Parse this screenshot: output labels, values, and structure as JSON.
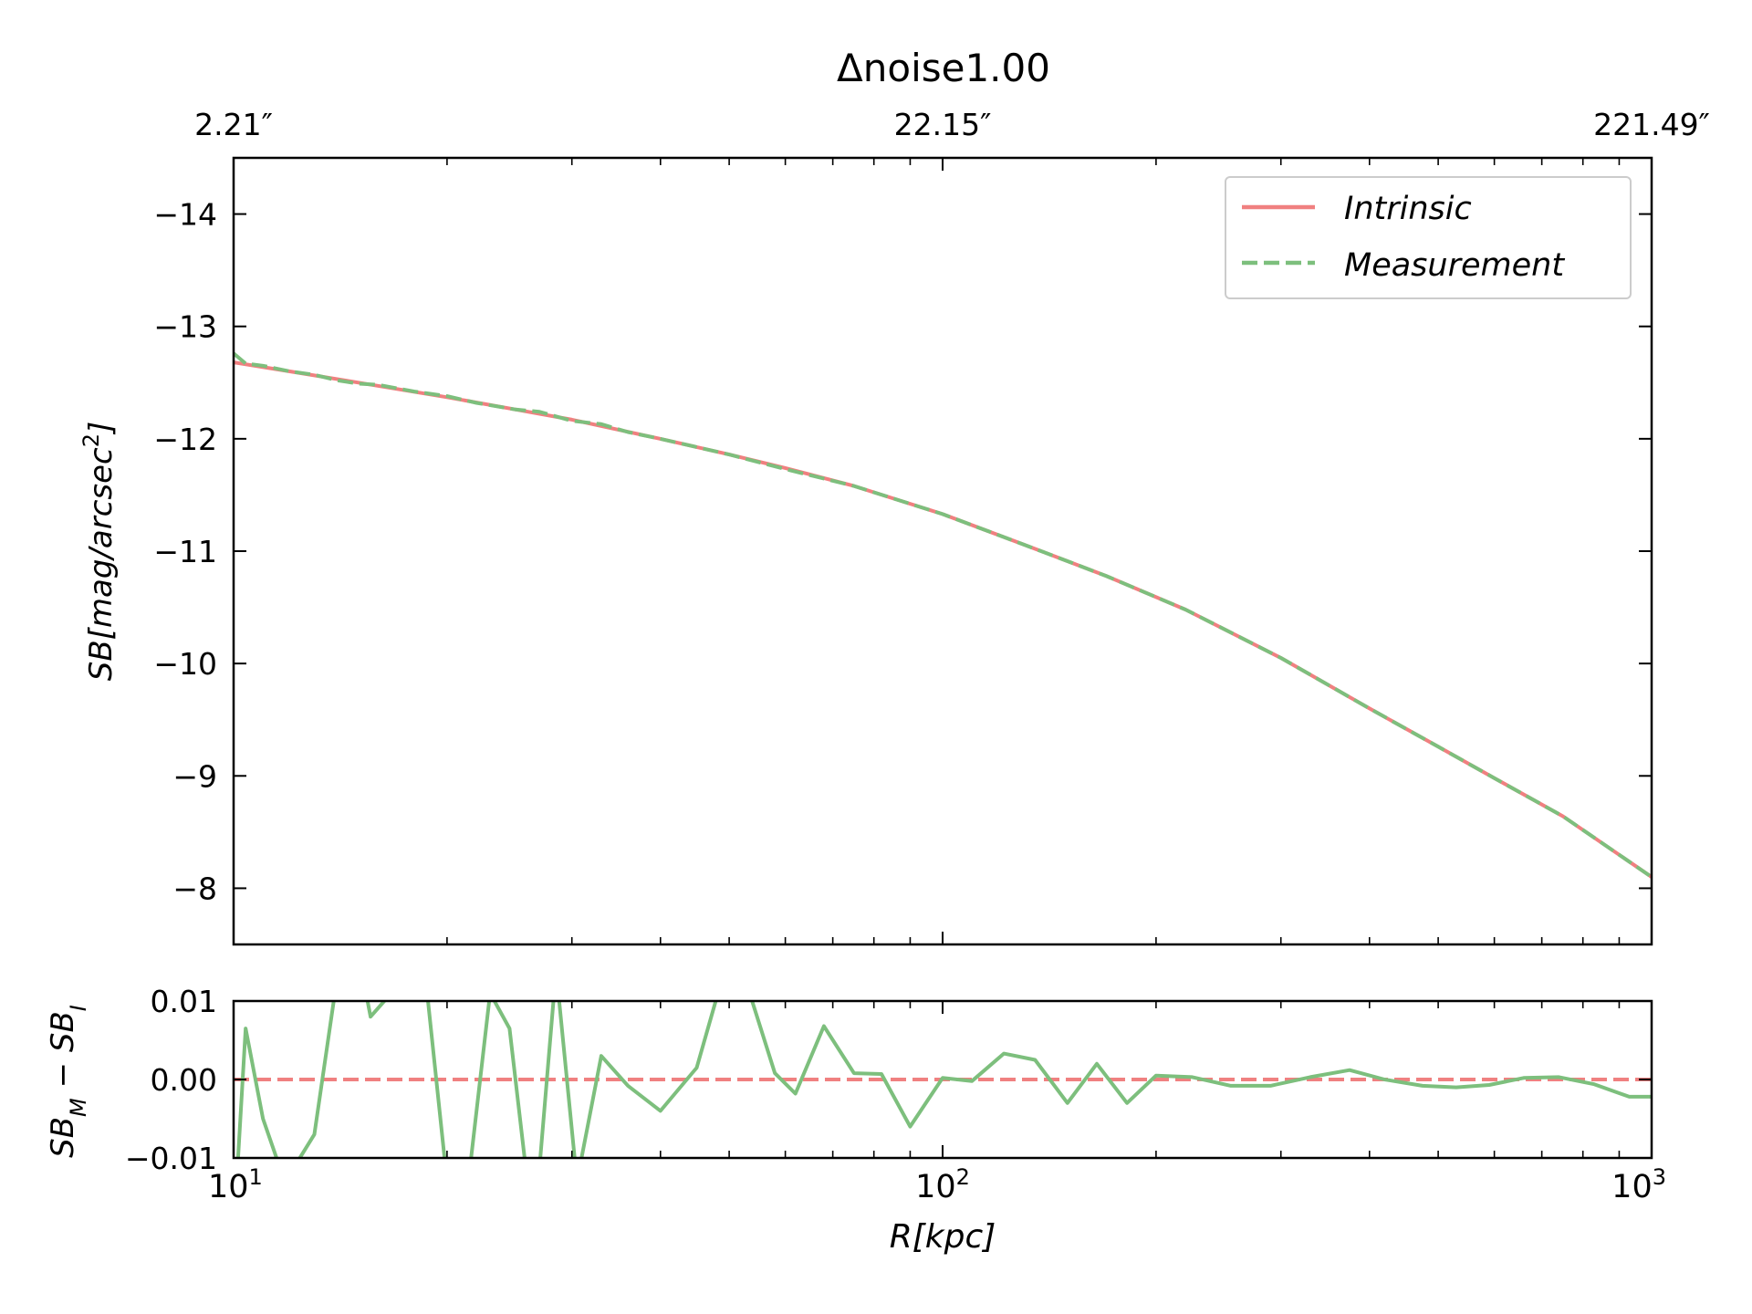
{
  "chart_data": [
    {
      "type": "line",
      "title": "Δnoise1.00",
      "xlabel": "",
      "ylabel": "SB[mag/arcsec2]",
      "x_scale": "log",
      "xlim": [
        10,
        1000
      ],
      "ylim": [
        -14.5,
        -7.5
      ],
      "y_inverted": true,
      "yticks": [
        "−14",
        "−13",
        "−12",
        "−11",
        "−10",
        "−9",
        "−8"
      ],
      "top_axis_ticks": [
        "2.21″",
        "22.15″",
        "221.49″"
      ],
      "legend_position": "upper right",
      "grid": false,
      "series": [
        {
          "name": "Intrinsic",
          "color": "#f08080",
          "style": "solid",
          "x": [
            10,
            12,
            15,
            20,
            25,
            30,
            40,
            50,
            60,
            75,
            100,
            130,
            170,
            220,
            300,
            400,
            500,
            600,
            750,
            1000
          ],
          "y": [
            -12.68,
            -12.6,
            -12.5,
            -12.37,
            -12.26,
            -12.17,
            -12.0,
            -11.86,
            -11.74,
            -11.58,
            -11.33,
            -11.06,
            -10.78,
            -10.48,
            -10.05,
            -9.6,
            -9.26,
            -8.98,
            -8.64,
            -8.1
          ]
        },
        {
          "name": "Measurement",
          "color": "#7dbf7d",
          "style": "dashed",
          "x": [
            10,
            10.4,
            11,
            12,
            13,
            14,
            15,
            16,
            18,
            20,
            22,
            25,
            27,
            30,
            33,
            36,
            40,
            50,
            60,
            75,
            100,
            130,
            170,
            220,
            300,
            400,
            500,
            600,
            750,
            1000
          ],
          "y": [
            -12.76,
            -12.67,
            -12.65,
            -12.6,
            -12.57,
            -12.52,
            -12.49,
            -12.48,
            -12.42,
            -12.38,
            -12.32,
            -12.26,
            -12.24,
            -12.16,
            -12.13,
            -12.06,
            -12.0,
            -11.86,
            -11.73,
            -11.58,
            -11.33,
            -11.06,
            -10.78,
            -10.48,
            -10.05,
            -9.6,
            -9.26,
            -8.98,
            -8.64,
            -8.1
          ]
        }
      ]
    },
    {
      "type": "line",
      "xlabel": "R[kpc]",
      "ylabel": "SBM − SBI",
      "x_scale": "log",
      "xlim": [
        10,
        1000
      ],
      "ylim": [
        -0.01,
        0.01
      ],
      "yticks": [
        "−0.01",
        "0.00",
        "0.01"
      ],
      "xticks": [
        "10",
        "10",
        "10"
      ],
      "xtick_exponents": [
        "1",
        "2",
        "3"
      ],
      "grid": false,
      "reference_line": {
        "y": 0,
        "color": "#f08080",
        "style": "dashed"
      },
      "series": [
        {
          "color": "#7dbf7d",
          "style": "solid",
          "x": [
            10.1,
            10.4,
            11.0,
            11.7,
            12.3,
            13.0,
            14.0,
            15.0,
            15.6,
            16.5,
            18.5,
            20.0,
            21.5,
            23.0,
            24.5,
            26.5,
            28.5,
            30.5,
            33.0,
            36.0,
            40.0,
            45.0,
            50.0,
            53.0,
            58.0,
            62.0,
            68.0,
            75.0,
            82.0,
            90.0,
            100.0,
            110.0,
            122.0,
            135.0,
            150.0,
            165.0,
            182.0,
            200.0,
            225.0,
            255.0,
            290.0,
            330.0,
            375.0,
            420.0,
            475.0,
            530.0,
            590.0,
            660.0,
            740.0,
            830.0,
            930.0,
            1000.0
          ],
          "y": [
            -0.013,
            0.0065,
            -0.005,
            -0.012,
            -0.0105,
            -0.007,
            0.013,
            0.016,
            0.008,
            0.0105,
            0.016,
            -0.013,
            -0.012,
            0.011,
            0.0065,
            -0.02,
            0.014,
            -0.013,
            0.003,
            -0.0008,
            -0.004,
            0.0015,
            0.016,
            0.012,
            0.0008,
            -0.0018,
            0.0068,
            0.0008,
            0.0007,
            -0.006,
            0.0002,
            -0.0002,
            0.0033,
            0.0025,
            -0.003,
            0.002,
            -0.003,
            0.0005,
            0.0003,
            -0.0008,
            -0.0008,
            0.0003,
            0.0012,
            0.0,
            -0.0008,
            -0.001,
            -0.0007,
            0.0002,
            0.0003,
            -0.0006,
            -0.0022,
            -0.0022
          ]
        }
      ]
    }
  ]
}
